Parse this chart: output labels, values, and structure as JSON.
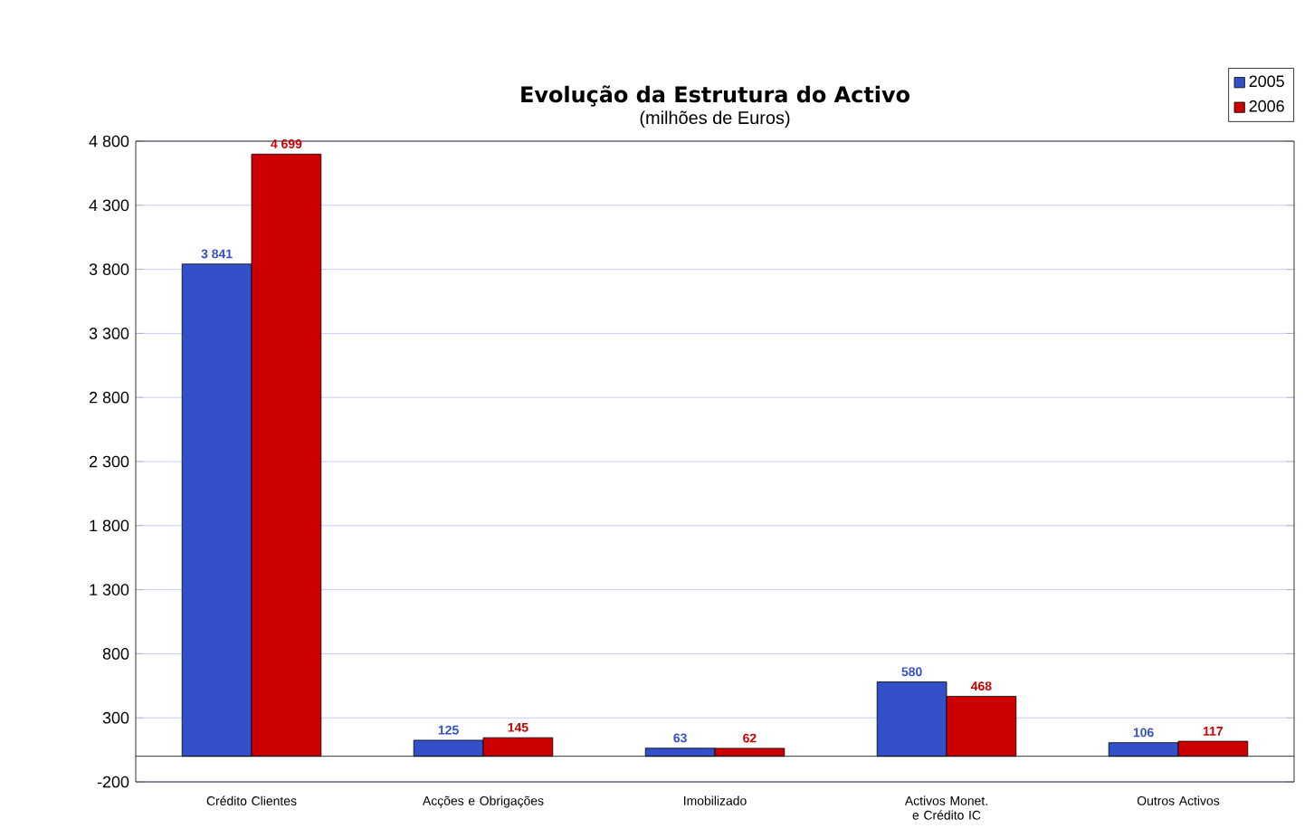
{
  "chart_data": {
    "type": "bar",
    "title": "Evolução da Estrutura do Activo",
    "subtitle": "(milhões de Euros)",
    "categories": [
      "Crédito Clientes",
      "Acções e Obrigações",
      "Imobilizado",
      "Activos Monet. e Crédito IC",
      "Outros Activos"
    ],
    "series": [
      {
        "name": "2005",
        "color": "#3350c8",
        "values": [
          3841,
          125,
          63,
          580,
          106
        ],
        "value_labels": [
          "3 841",
          "125",
          "63",
          "580",
          "106"
        ]
      },
      {
        "name": "2006",
        "color": "#cc0000",
        "values": [
          4699,
          145,
          62,
          468,
          117
        ],
        "value_labels": [
          "4 699",
          "145",
          "62",
          "468",
          "117"
        ]
      }
    ],
    "ylim": [
      -200,
      4800
    ],
    "yticks": [
      {
        "value": -200,
        "label": "-200"
      },
      {
        "value": 300,
        "label": "300"
      },
      {
        "value": 800,
        "label": "800"
      },
      {
        "value": 1300,
        "label": "1 300"
      },
      {
        "value": 1800,
        "label": "1 800"
      },
      {
        "value": 2300,
        "label": "2 300"
      },
      {
        "value": 2800,
        "label": "2 800"
      },
      {
        "value": 3300,
        "label": "3 300"
      },
      {
        "value": 3800,
        "label": "3 800"
      },
      {
        "value": 4300,
        "label": "4 300"
      },
      {
        "value": 4800,
        "label": "4 800"
      }
    ],
    "grid": "y",
    "legend": "top right"
  }
}
